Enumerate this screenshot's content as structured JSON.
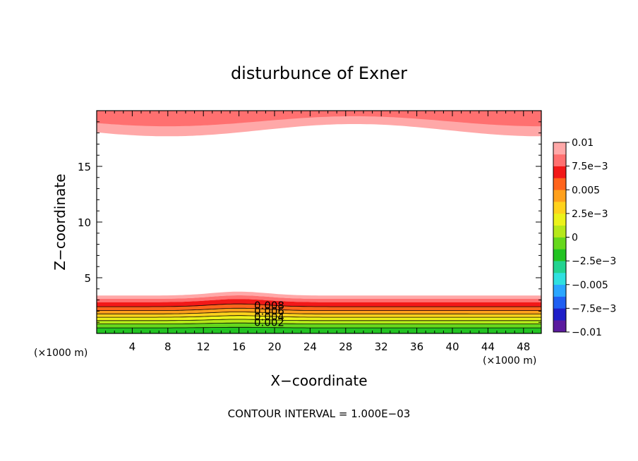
{
  "chart_data": {
    "type": "contour",
    "title": "disturbunce of Exner",
    "xlabel": "X−coordinate",
    "ylabel": "Z−coordinate",
    "x_unit": "(×1000 m)",
    "y_unit": "(×1000 m)",
    "xlim": [
      0,
      50
    ],
    "ylim": [
      0,
      20
    ],
    "x_ticks": [
      4,
      8,
      12,
      16,
      20,
      24,
      28,
      32,
      36,
      40,
      44,
      48
    ],
    "y_ticks": [
      5,
      10,
      15
    ],
    "contour_interval_text": "CONTOUR INTERVAL = 1.000E−03",
    "contour_labels": [
      "0.008",
      "0.006",
      "0.004",
      "0.002"
    ],
    "colorbar": {
      "tick_labels": [
        "0.01",
        "7.5e−3",
        "0.005",
        "2.5e−3",
        "0",
        "−2.5e−3",
        "−0.005",
        "−7.5e−3",
        "−0.01"
      ],
      "colors": [
        "#5b1b9e",
        "#1e1ec8",
        "#1f5ff2",
        "#2aa6ff",
        "#2fe0e0",
        "#22d390",
        "#22c322",
        "#66d81c",
        "#b6e81a",
        "#ecf21a",
        "#ffd21c",
        "#ffa01c",
        "#ff641c",
        "#f21818",
        "#ff7070",
        "#ffa8a8"
      ],
      "range": [
        -0.01,
        0.01
      ]
    },
    "lower_layer_bands": [
      {
        "fill": "#ffa8a8",
        "top": 3.4,
        "bottom": 3.1
      },
      {
        "fill": "#ff7070",
        "top": 3.1,
        "bottom": 2.8
      },
      {
        "fill": "#f21818",
        "top": 2.8,
        "bottom": 2.4
      },
      {
        "fill": "#ff641c",
        "top": 2.4,
        "bottom": 2.05
      },
      {
        "fill": "#ffa01c",
        "top": 2.05,
        "bottom": 1.75
      },
      {
        "fill": "#ffd21c",
        "top": 1.75,
        "bottom": 1.45
      },
      {
        "fill": "#ecf21a",
        "top": 1.45,
        "bottom": 1.15
      },
      {
        "fill": "#b6e81a",
        "top": 1.15,
        "bottom": 0.85
      },
      {
        "fill": "#66d81c",
        "top": 0.85,
        "bottom": 0.5
      },
      {
        "fill": "#22c322",
        "top": 0.5,
        "bottom": 0
      }
    ],
    "upper_layer_bands": [
      {
        "fill": "#ffa8a8",
        "base": 18.4,
        "amplitude": 0.55
      },
      {
        "fill": "#ff7070",
        "base": 19.2,
        "amplitude": 0.45
      }
    ],
    "bump_center_x": 16,
    "bump_height": 0.35
  }
}
